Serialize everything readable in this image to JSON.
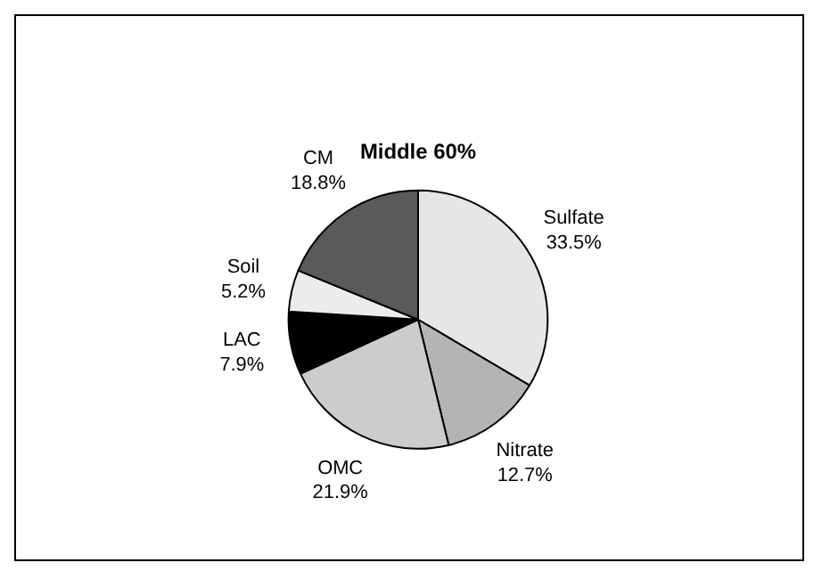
{
  "chart_data": {
    "type": "pie",
    "title": "Middle 60%",
    "categories": [
      "Sulfate",
      "Nitrate",
      "OMC",
      "LAC",
      "Soil",
      "CM"
    ],
    "values": [
      33.5,
      12.7,
      21.9,
      7.9,
      5.2,
      18.8
    ],
    "value_labels": [
      "33.5%",
      "12.7%",
      "21.9%",
      "7.9%",
      "5.2%",
      "18.8%"
    ],
    "colors": [
      "#e6e6e6",
      "#b4b4b4",
      "#cccccc",
      "#000000",
      "#ececec",
      "#5a5a5a"
    ],
    "legend": false
  }
}
